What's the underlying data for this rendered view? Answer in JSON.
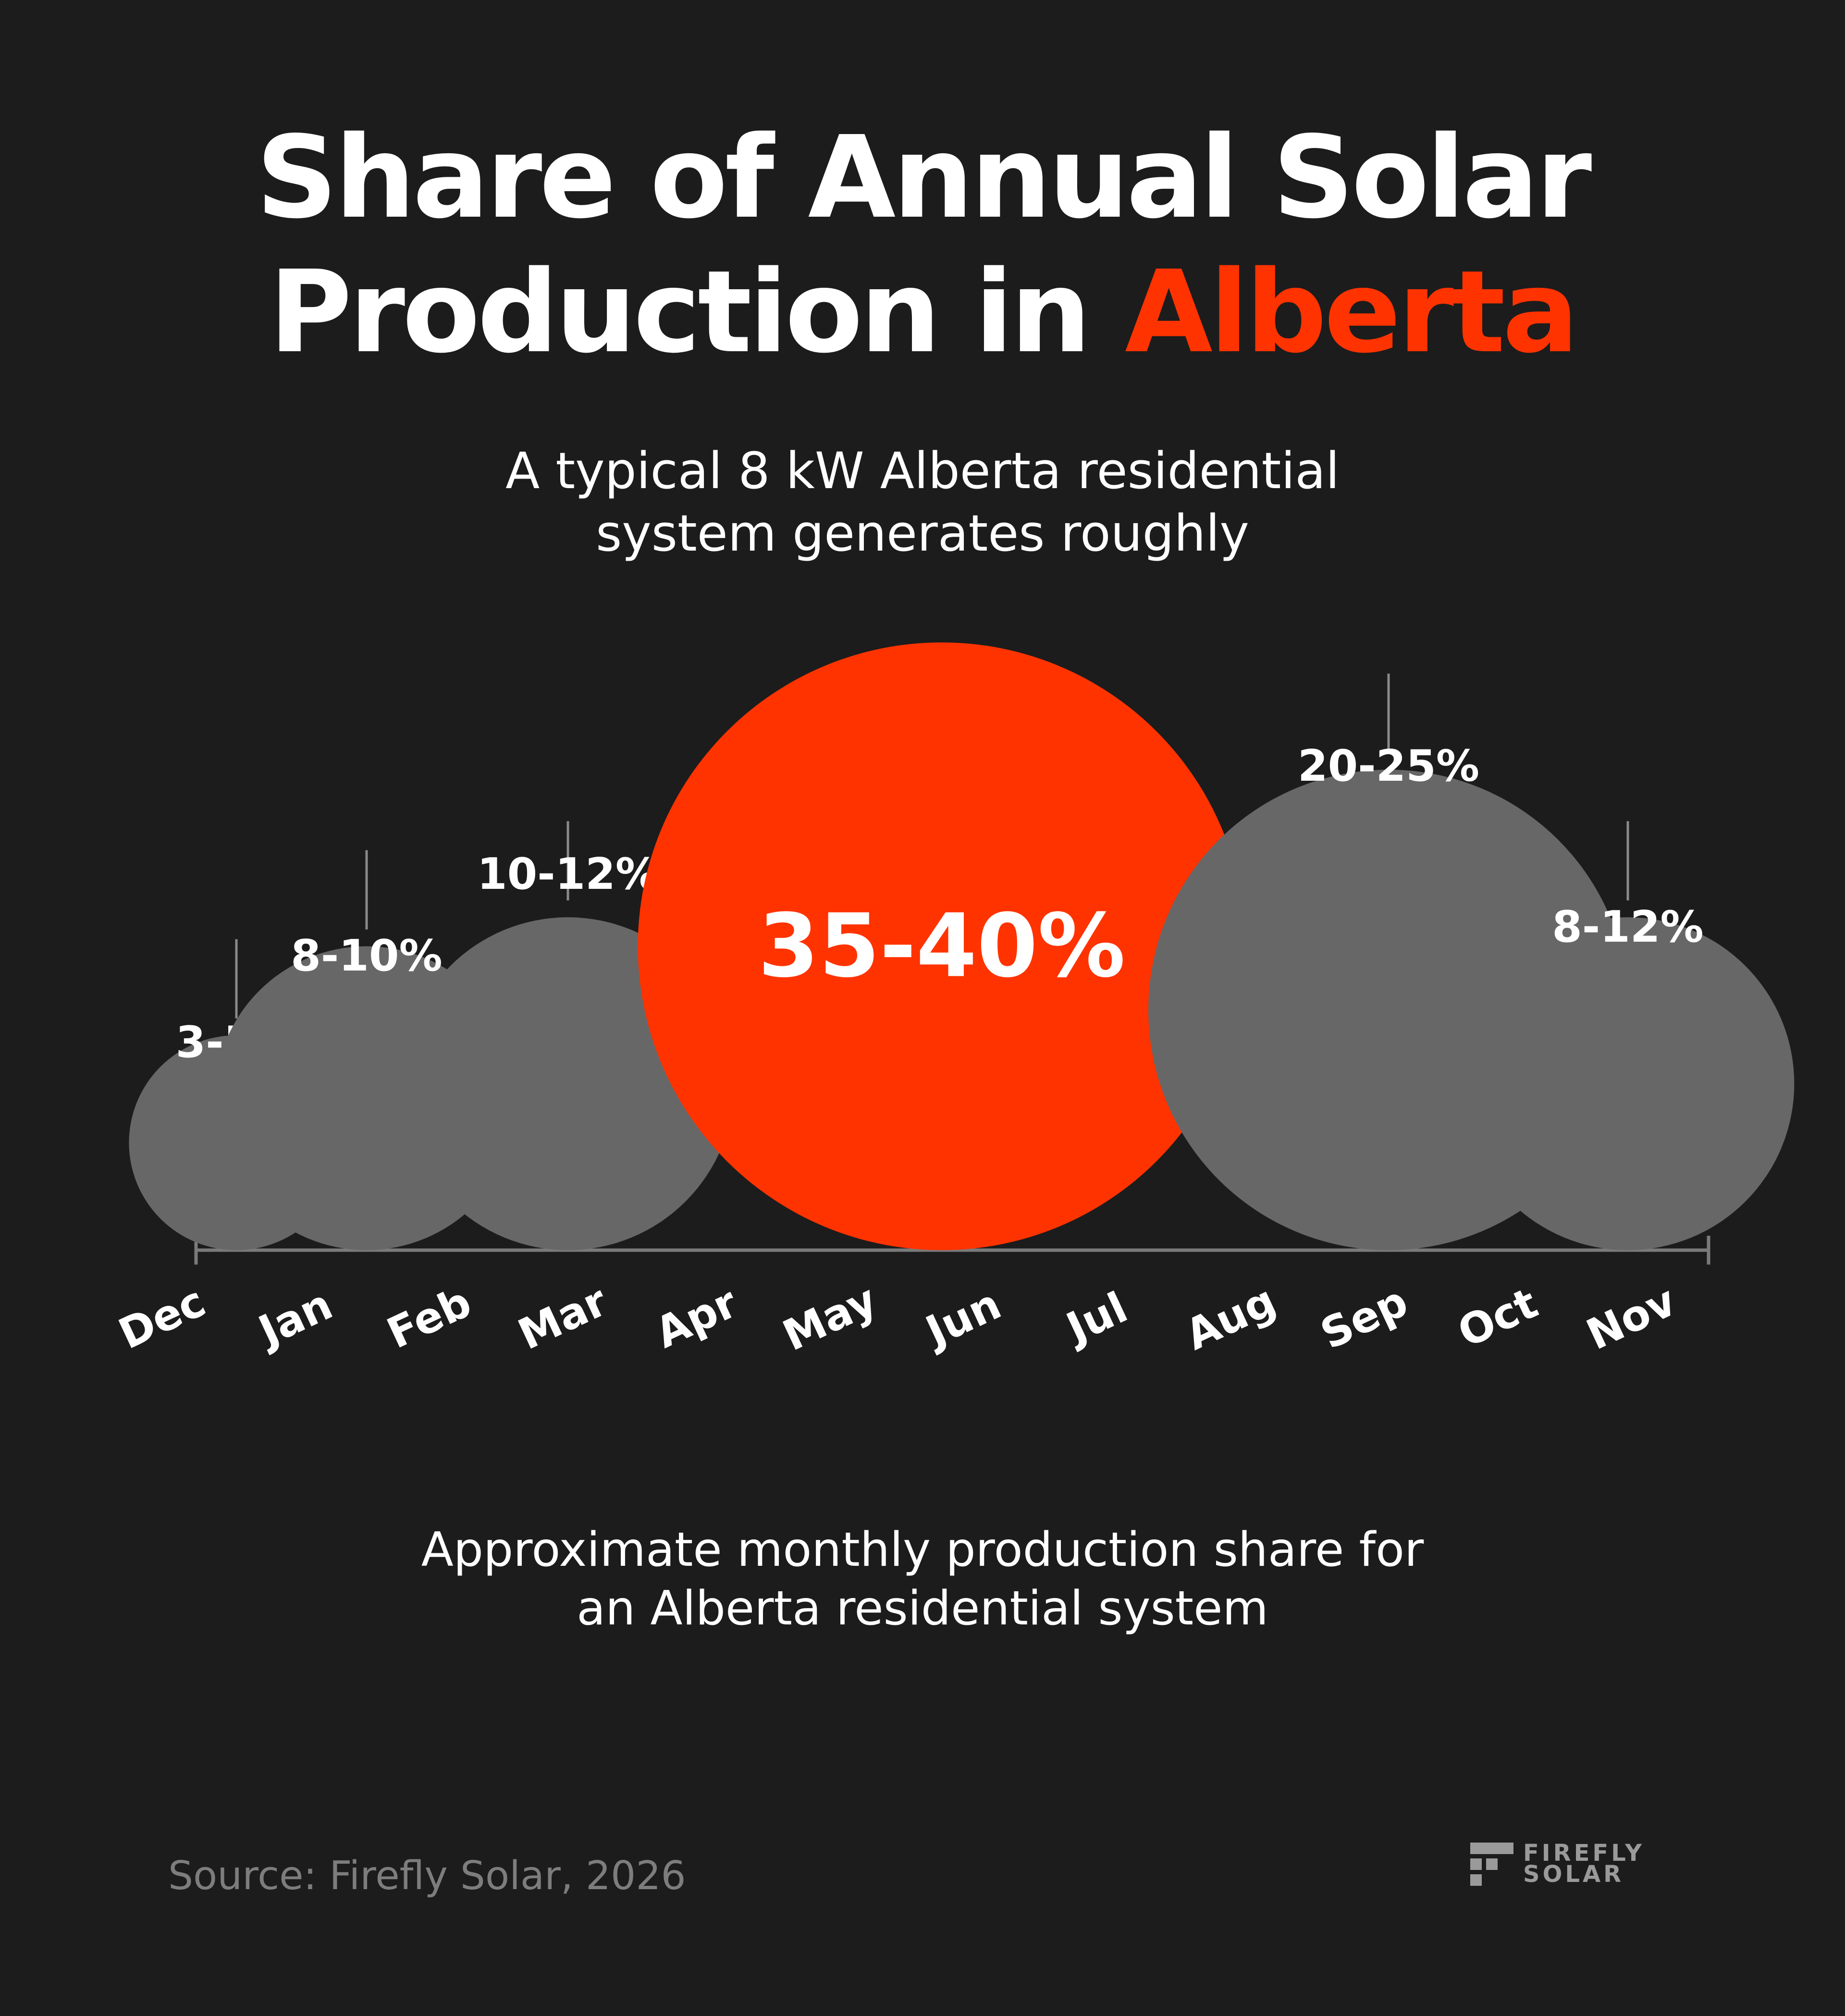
{
  "title": {
    "line1": "Share of Annual Solar",
    "line2_prefix": "Production in ",
    "line2_accent": "Alberta"
  },
  "subtitle": {
    "line1": "A typical 8 kW Alberta residential",
    "line2": "system generates roughly"
  },
  "caption": {
    "line1": "Approximate monthly production share for",
    "line2": "an Alberta residential system"
  },
  "source": "Source: Firefly Solar, 2026",
  "logo": {
    "line1": "FIREFLY",
    "line2": "SOLAR"
  },
  "colors": {
    "background": "#1c1c1c",
    "accent": "#ff3300",
    "bubble": "#676767",
    "axis": "#7a7a7a",
    "text": "#ffffff",
    "muted": "#7d7d7d"
  },
  "chart_data": {
    "type": "bubble",
    "categories": [
      "Dec",
      "Jan",
      "Feb",
      "Mar",
      "Apr",
      "May",
      "Jun",
      "Jul",
      "Aug",
      "Sep",
      "Oct",
      "Nov"
    ],
    "bubbles": [
      {
        "label": "3-5%",
        "min": 3,
        "max": 5,
        "category": "Dec",
        "highlight": false
      },
      {
        "label": "8-10%",
        "min": 8,
        "max": 10,
        "category": "Jan",
        "highlight": false
      },
      {
        "label": "10-12%",
        "min": 10,
        "max": 12,
        "category": "Mar",
        "highlight": false
      },
      {
        "label": "35-40%",
        "min": 35,
        "max": 40,
        "category": "May-Jul",
        "highlight": true
      },
      {
        "label": "20-25%",
        "min": 20,
        "max": 25,
        "category": "Sep",
        "highlight": false
      },
      {
        "label": "8-12%",
        "min": 8,
        "max": 12,
        "category": "Nov",
        "highlight": false
      }
    ]
  }
}
